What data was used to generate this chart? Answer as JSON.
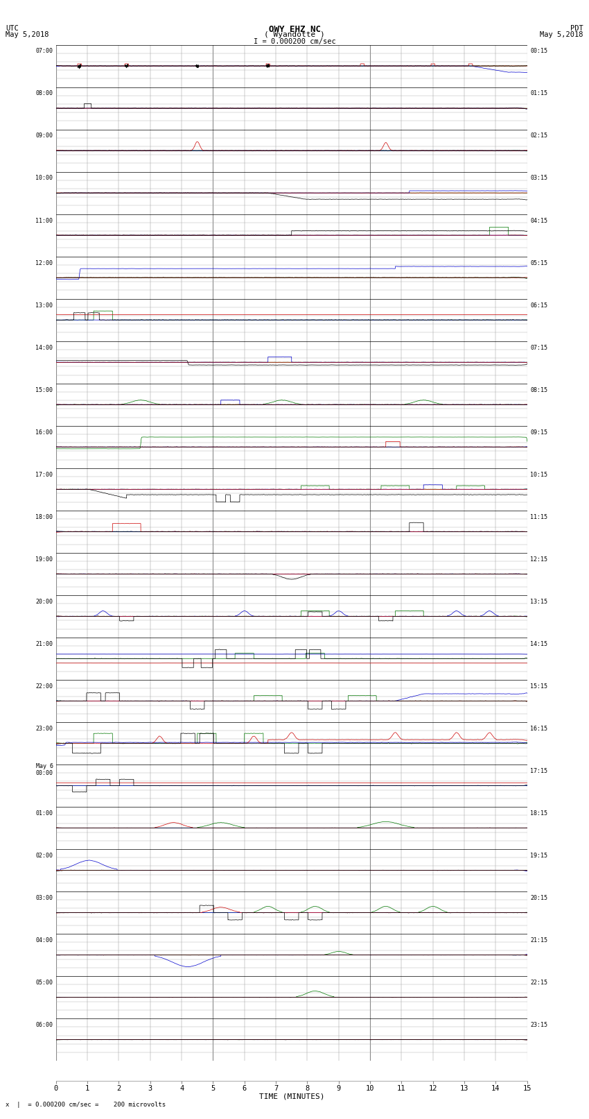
{
  "title_line1": "OWY EHZ NC",
  "title_line2": "( Wyandotte )",
  "scale_text": "I = 0.000200 cm/sec",
  "bottom_scale_text": "x  |  = 0.000200 cm/sec =    200 microvolts",
  "utc_label": "UTC",
  "utc_date": "May 5,2018",
  "pdt_label": "PDT",
  "pdt_date": "May 5,2018",
  "xlabel": "TIME (MINUTES)",
  "xmin": 0,
  "xmax": 15,
  "xticks": [
    0,
    1,
    2,
    3,
    4,
    5,
    6,
    7,
    8,
    9,
    10,
    11,
    12,
    13,
    14,
    15
  ],
  "left_times": [
    "07:00",
    "08:00",
    "09:00",
    "10:00",
    "11:00",
    "12:00",
    "13:00",
    "14:00",
    "15:00",
    "16:00",
    "17:00",
    "18:00",
    "19:00",
    "20:00",
    "21:00",
    "22:00",
    "23:00",
    "May 6\n00:00",
    "01:00",
    "02:00",
    "03:00",
    "04:00",
    "05:00",
    "06:00"
  ],
  "right_times": [
    "00:15",
    "01:15",
    "02:15",
    "03:15",
    "04:15",
    "05:15",
    "06:15",
    "07:15",
    "08:15",
    "09:15",
    "10:15",
    "11:15",
    "12:15",
    "13:15",
    "14:15",
    "15:15",
    "16:15",
    "17:15",
    "18:15",
    "19:15",
    "20:15",
    "21:15",
    "22:15",
    "23:15"
  ],
  "n_rows": 24,
  "bg_color": "#ffffff",
  "grid_color": "#aaaaaa",
  "minor_grid_color": "#cccccc",
  "text_color": "#000000",
  "fig_width": 8.5,
  "fig_height": 16.13,
  "dpi": 100,
  "seed": 42
}
